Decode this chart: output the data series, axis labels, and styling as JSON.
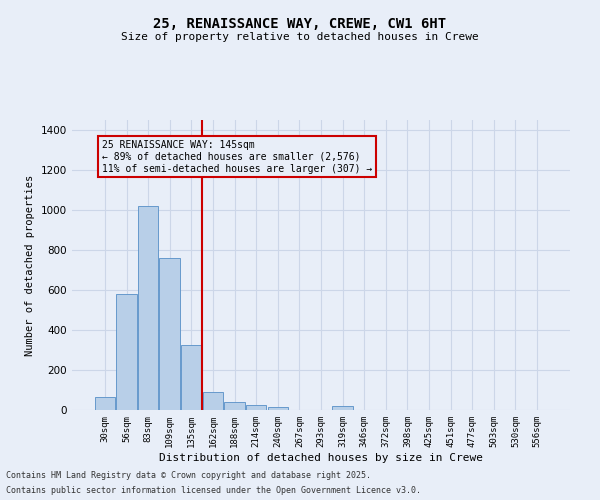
{
  "title_line1": "25, RENAISSANCE WAY, CREWE, CW1 6HT",
  "title_line2": "Size of property relative to detached houses in Crewe",
  "xlabel": "Distribution of detached houses by size in Crewe",
  "ylabel": "Number of detached properties",
  "categories": [
    "30sqm",
    "56sqm",
    "83sqm",
    "109sqm",
    "135sqm",
    "162sqm",
    "188sqm",
    "214sqm",
    "240sqm",
    "267sqm",
    "293sqm",
    "319sqm",
    "346sqm",
    "372sqm",
    "398sqm",
    "425sqm",
    "451sqm",
    "477sqm",
    "503sqm",
    "530sqm",
    "556sqm"
  ],
  "values": [
    65,
    578,
    1020,
    760,
    325,
    90,
    40,
    25,
    15,
    0,
    0,
    20,
    0,
    0,
    0,
    0,
    0,
    0,
    0,
    0,
    0
  ],
  "bar_color": "#b8cfe8",
  "bar_edge_color": "#6699cc",
  "grid_color": "#ccd6e8",
  "background_color": "#e8eef8",
  "vline_x": 4.5,
  "vline_color": "#cc0000",
  "annotation_text": "25 RENAISSANCE WAY: 145sqm\n← 89% of detached houses are smaller (2,576)\n11% of semi-detached houses are larger (307) →",
  "annotation_box_color": "#cc0000",
  "footer_line1": "Contains HM Land Registry data © Crown copyright and database right 2025.",
  "footer_line2": "Contains public sector information licensed under the Open Government Licence v3.0.",
  "ylim": [
    0,
    1450
  ],
  "yticks": [
    0,
    200,
    400,
    600,
    800,
    1000,
    1200,
    1400
  ],
  "fig_width": 6.0,
  "fig_height": 5.0,
  "dpi": 100
}
